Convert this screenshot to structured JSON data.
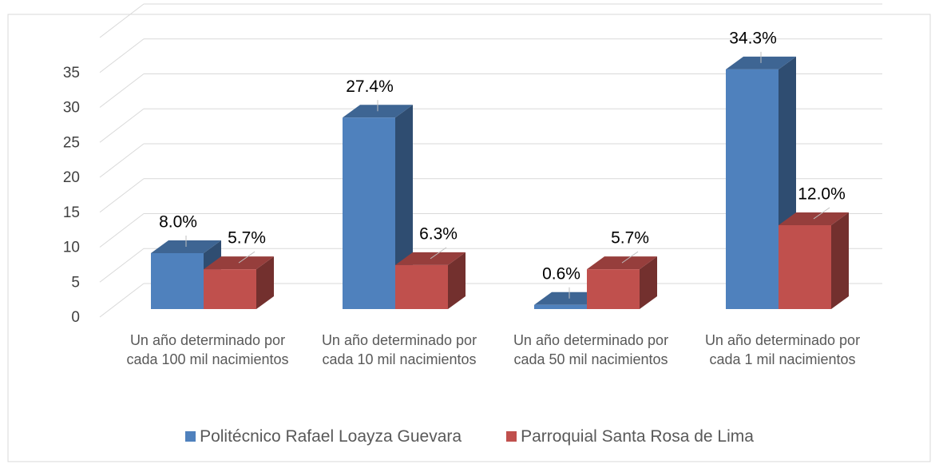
{
  "chart_data": {
    "type": "bar3d",
    "categories": [
      "Un año determinado por cada 100 mil nacimientos",
      "Un año determinado por cada 10 mil nacimientos",
      "Un año determinado por cada 50 mil nacimientos",
      "Un año determinado por cada 1 mil nacimientos"
    ],
    "series": [
      {
        "name": "Politécnico Rafael Loayza Guevara",
        "color": "#4f81bd",
        "values": [
          8.0,
          27.4,
          0.6,
          34.3
        ],
        "value_labels": [
          "8.0%",
          "27.4%",
          "0.6%",
          "34.3%"
        ]
      },
      {
        "name": "Parroquial Santa Rosa de Lima",
        "color": "#c0504d",
        "values": [
          5.7,
          6.3,
          5.7,
          12.0
        ],
        "value_labels": [
          "5.7%",
          "6.3%",
          "5.7%",
          "12.0%"
        ]
      }
    ],
    "ylim": [
      0,
      40
    ],
    "yticks": [
      0,
      5,
      10,
      15,
      20,
      25,
      30,
      35
    ],
    "grid": true,
    "legend": "bottom"
  }
}
